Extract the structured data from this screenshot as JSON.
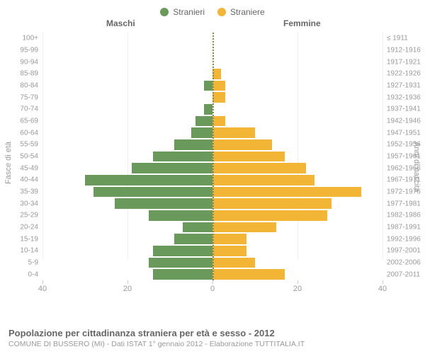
{
  "legend": {
    "male": {
      "label": "Stranieri",
      "color": "#6a9a5b"
    },
    "female": {
      "label": "Straniere",
      "color": "#f2b536"
    }
  },
  "headers": {
    "left": "Maschi",
    "right": "Femmine"
  },
  "axis_titles": {
    "left": "Fasce di età",
    "right": "Anni di nascita"
  },
  "chart": {
    "type": "population-pyramid",
    "xmax": 40,
    "xticks": [
      40,
      20,
      0,
      20,
      40
    ],
    "background_color": "#ffffff",
    "grid_color": "#eeeeee",
    "bar_color_male": "#6a9a5b",
    "bar_color_female": "#f2b536",
    "label_color": "#999999",
    "label_fontsize": 10,
    "rows": [
      {
        "age": "100+",
        "birth": "≤ 1911",
        "m": 0,
        "f": 0
      },
      {
        "age": "95-99",
        "birth": "1912-1916",
        "m": 0,
        "f": 0
      },
      {
        "age": "90-94",
        "birth": "1917-1921",
        "m": 0,
        "f": 0
      },
      {
        "age": "85-89",
        "birth": "1922-1926",
        "m": 0,
        "f": 2
      },
      {
        "age": "80-84",
        "birth": "1927-1931",
        "m": 2,
        "f": 3
      },
      {
        "age": "75-79",
        "birth": "1932-1936",
        "m": 0,
        "f": 3
      },
      {
        "age": "70-74",
        "birth": "1937-1941",
        "m": 2,
        "f": 0
      },
      {
        "age": "65-69",
        "birth": "1942-1946",
        "m": 4,
        "f": 3
      },
      {
        "age": "60-64",
        "birth": "1947-1951",
        "m": 5,
        "f": 10
      },
      {
        "age": "55-59",
        "birth": "1952-1956",
        "m": 9,
        "f": 14
      },
      {
        "age": "50-54",
        "birth": "1957-1961",
        "m": 14,
        "f": 17
      },
      {
        "age": "45-49",
        "birth": "1962-1966",
        "m": 19,
        "f": 22
      },
      {
        "age": "40-44",
        "birth": "1967-1971",
        "m": 30,
        "f": 24
      },
      {
        "age": "35-39",
        "birth": "1972-1976",
        "m": 28,
        "f": 35
      },
      {
        "age": "30-34",
        "birth": "1977-1981",
        "m": 23,
        "f": 28
      },
      {
        "age": "25-29",
        "birth": "1982-1986",
        "m": 15,
        "f": 27
      },
      {
        "age": "20-24",
        "birth": "1987-1991",
        "m": 7,
        "f": 15
      },
      {
        "age": "15-19",
        "birth": "1992-1996",
        "m": 9,
        "f": 8
      },
      {
        "age": "10-14",
        "birth": "1997-2001",
        "m": 14,
        "f": 8
      },
      {
        "age": "5-9",
        "birth": "2002-2006",
        "m": 15,
        "f": 10
      },
      {
        "age": "0-4",
        "birth": "2007-2011",
        "m": 14,
        "f": 17
      }
    ]
  },
  "footer": {
    "title": "Popolazione per cittadinanza straniera per età e sesso - 2012",
    "subtitle": "COMUNE DI BUSSERO (MI) - Dati ISTAT 1° gennaio 2012 - Elaborazione TUTTITALIA.IT"
  }
}
